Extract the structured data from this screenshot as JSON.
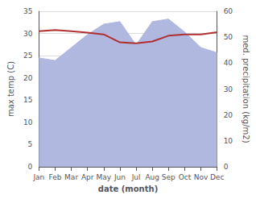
{
  "chart_data": {
    "type": "line",
    "categories": [
      "Jan",
      "Feb",
      "Mar",
      "Apr",
      "May",
      "Jun",
      "Jul",
      "Aug",
      "Sep",
      "Oct",
      "Nov",
      "Dec"
    ],
    "xlabel": "date (month)",
    "ylabel": "max temp (C)",
    "y2label": "med. precipitation (kg/m2)",
    "ylim": [
      0,
      35
    ],
    "yticks": [
      0,
      5,
      10,
      15,
      20,
      25,
      30,
      35
    ],
    "y2lim": [
      0,
      60
    ],
    "y2ticks": [
      0,
      10,
      20,
      30,
      40,
      50,
      60
    ],
    "grid": true,
    "series": [
      {
        "type": "area",
        "axis": "y2",
        "color": "#b0b8df",
        "values": [
          42,
          41,
          46,
          51,
          55,
          56,
          47,
          56,
          57,
          52,
          46,
          44
        ]
      },
      {
        "type": "line",
        "color": "#b03030",
        "values": [
          30.5,
          30.8,
          30.5,
          30.2,
          29.8,
          28.0,
          27.8,
          28.2,
          29.5,
          29.8,
          29.8,
          30.3
        ]
      }
    ]
  }
}
